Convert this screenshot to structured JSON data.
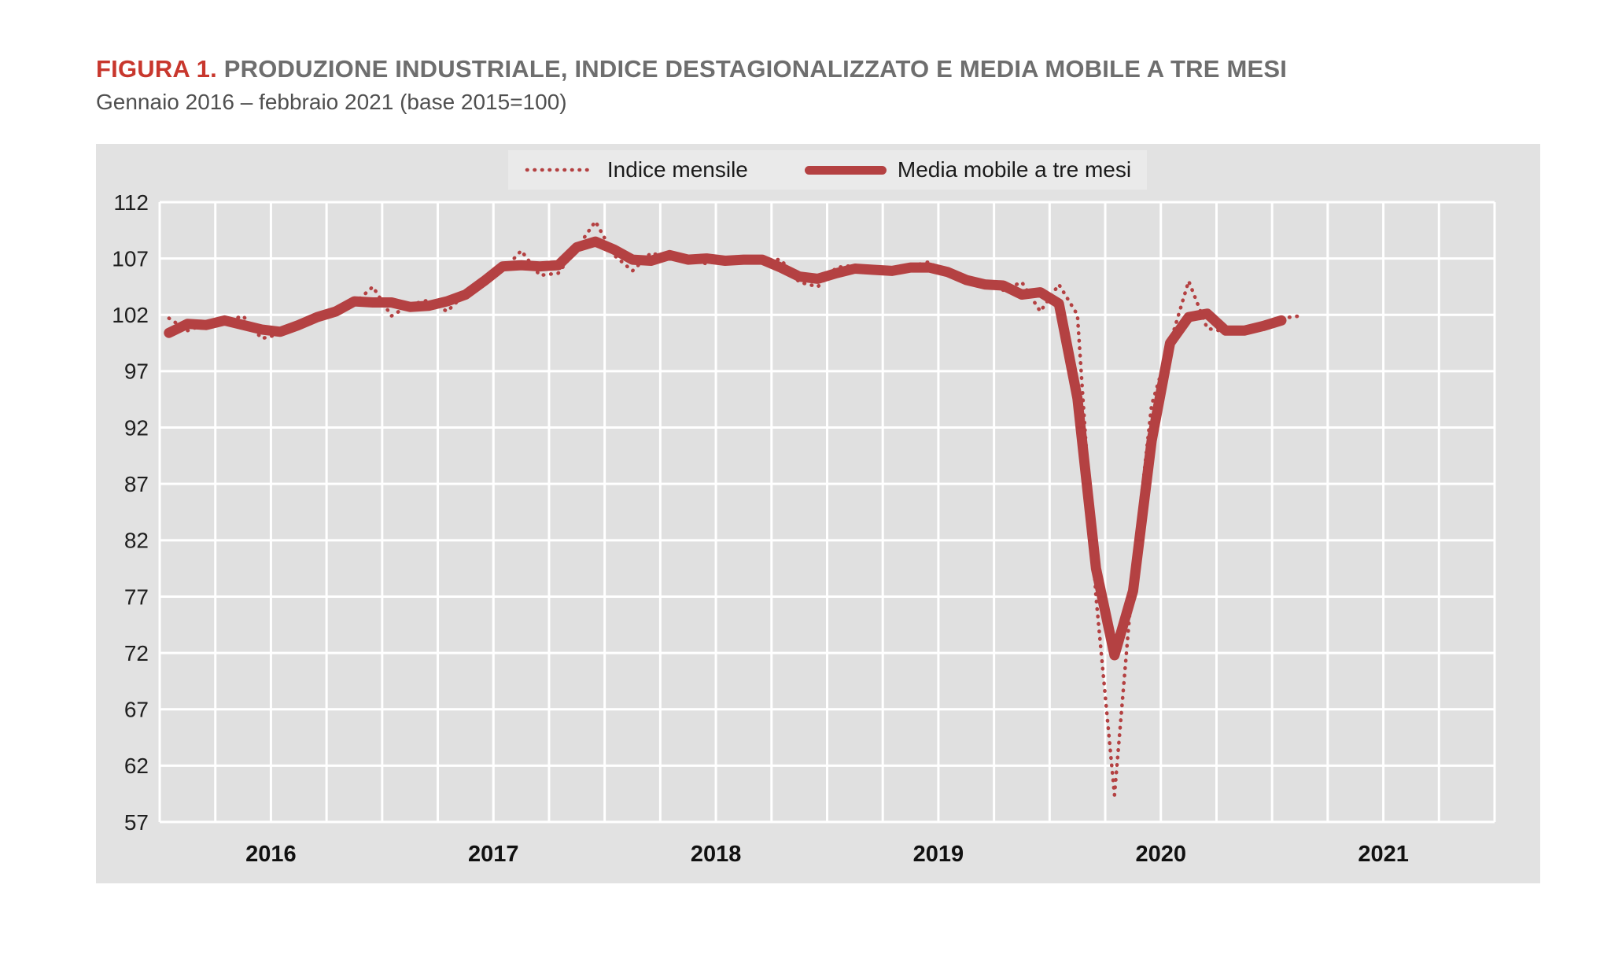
{
  "figure": {
    "label": "FIGURA 1.",
    "title": "PRODUZIONE INDUSTRIALE, INDICE DESTAGIONALIZZATO E MEDIA MOBILE A TRE MESI",
    "subtitle": "Gennaio 2016 – febbraio 2021 (base 2015=100)"
  },
  "legend": {
    "items": [
      {
        "label": "Indice mensile",
        "style": "dotted"
      },
      {
        "label": "Media mobile a tre mesi",
        "style": "solid"
      }
    ]
  },
  "colors": {
    "series_red": "#b44142",
    "figure_label_red": "#c8372d",
    "title_gray": "#6e6e6e",
    "panel_bg": "#e2e2e2",
    "plot_bg": "#e0e0e0",
    "legend_bg": "#eaeaea",
    "gridline": "#ffffff",
    "tick_text": "#1f1f1f"
  },
  "chart_data": {
    "type": "line",
    "title": "PRODUZIONE INDUSTRIALE, INDICE DESTAGIONALIZZATO E MEDIA MOBILE A TRE MESI",
    "subtitle": "Gennaio 2016 – febbraio 2021 (base 2015=100)",
    "x_start": "2016-01",
    "x_end": "2021-02",
    "x_axis_span_months": 72,
    "x_tick_labels": [
      "2016",
      "2017",
      "2018",
      "2019",
      "2020",
      "2021"
    ],
    "x_grid_interval": "quarterly",
    "y_ticks": [
      112,
      107,
      102,
      97,
      92,
      87,
      82,
      77,
      72,
      67,
      62,
      57
    ],
    "ylim": [
      57,
      112
    ],
    "grid": true,
    "legend_position": "top-center",
    "series": [
      {
        "name": "Indice mensile",
        "style": "dotted",
        "start": "2016-01",
        "values": [
          101.7,
          100.6,
          101.2,
          101.4,
          101.9,
          99.9,
          100.3,
          101.3,
          101.8,
          102.2,
          103.0,
          104.5,
          101.9,
          102.9,
          103.3,
          102.3,
          103.9,
          105.3,
          105.9,
          107.7,
          105.5,
          105.7,
          107.9,
          110.3,
          107.3,
          105.9,
          107.5,
          107.0,
          107.3,
          106.5,
          107.1,
          106.8,
          106.9,
          106.9,
          104.9,
          104.5,
          106.2,
          106.4,
          105.8,
          105.7,
          106.3,
          106.7,
          105.5,
          105.1,
          104.8,
          104.2,
          104.9,
          102.3,
          104.7,
          102.0,
          77.0,
          59.4,
          79.0,
          94.0,
          99.5,
          105.0,
          100.8,
          100.5,
          100.4,
          100.8,
          101.7,
          101.9
        ]
      },
      {
        "name": "Media mobile a tre mesi",
        "style": "solid",
        "start": "2016-01",
        "values": [
          100.4,
          101.2,
          101.1,
          101.5,
          101.1,
          100.7,
          100.5,
          101.1,
          101.8,
          102.3,
          103.2,
          103.1,
          103.1,
          102.7,
          102.8,
          103.2,
          103.8,
          105.0,
          106.3,
          106.4,
          106.3,
          106.4,
          108.0,
          108.5,
          107.8,
          106.9,
          106.8,
          107.3,
          106.9,
          107.0,
          106.8,
          106.9,
          106.9,
          106.2,
          105.4,
          105.2,
          105.7,
          106.1,
          106.0,
          105.9,
          106.2,
          106.2,
          105.8,
          105.1,
          104.7,
          104.6,
          103.8,
          104.0,
          103.0,
          94.6,
          79.5,
          71.8,
          77.5,
          90.8,
          99.5,
          101.8,
          102.1,
          100.6,
          100.6,
          101.0,
          101.5
        ]
      }
    ]
  }
}
